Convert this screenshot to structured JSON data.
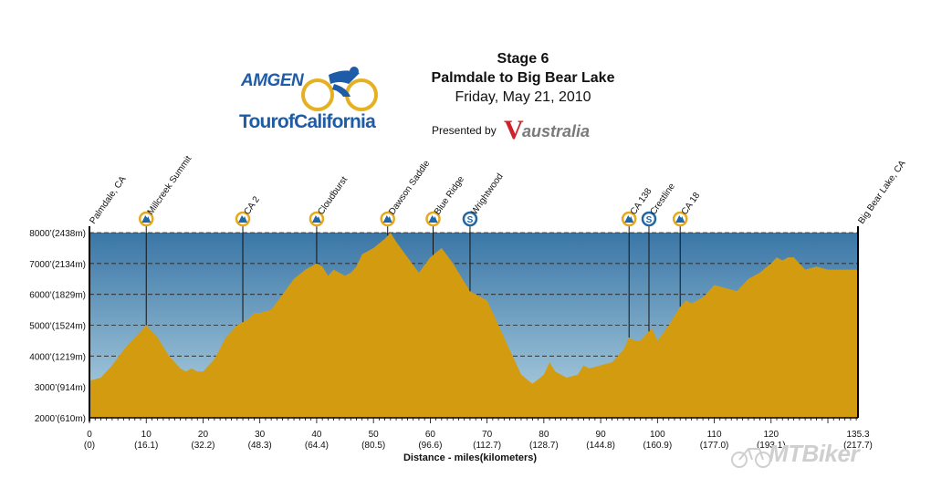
{
  "header": {
    "stage": "Stage 6",
    "route": "Palmdale to Big Bear Lake",
    "date": "Friday, May 21, 2010",
    "presented_by": "Presented by",
    "sponsor": "australia",
    "sponsor_initial": "V"
  },
  "logo": {
    "line1": "AMGEN",
    "line2": "TourofCalifornia"
  },
  "watermark": "MTBiker",
  "colors": {
    "terrain": "#d39c10",
    "sky_top": "#3a76a6",
    "sky_bottom": "#b3d4e3",
    "climb_icon": "#e7a81c",
    "sprint_icon": "#2166a5"
  },
  "chart_data": {
    "type": "area",
    "xlabel": "Distance - miles(kilometers)",
    "ylim": [
      2000,
      8000
    ],
    "xlim": [
      0,
      135.3
    ],
    "grid": true,
    "x_ticks": [
      0,
      10,
      20,
      30,
      40,
      50,
      60,
      70,
      80,
      90,
      100,
      110,
      120,
      135.3
    ],
    "x_tick_labels": [
      "0",
      "10",
      "20",
      "30",
      "40",
      "50",
      "60",
      "70",
      "80",
      "90",
      "100",
      "110",
      "120",
      "135.3"
    ],
    "x_tick_sublabels": [
      "(0)",
      "(16.1)",
      "(32.2)",
      "(48.3)",
      "(64.4)",
      "(80.5)",
      "(96.6)",
      "(112.7)",
      "(128.7)",
      "(144.8)",
      "(160.9)",
      "(177.0)",
      "(193.1)",
      "(217.7)"
    ],
    "y_ticks": [
      2000,
      3000,
      4000,
      5000,
      6000,
      7000,
      8000
    ],
    "y_tick_labels": [
      "2000’(610m)",
      "3000’(914m)",
      "4000’(1219m)",
      "5000’(1524m)",
      "6000’(1829m)",
      "7000’(2134m)",
      "8000’(2438m)"
    ],
    "profile": {
      "x": [
        0,
        2,
        4,
        6,
        8,
        10,
        12,
        14,
        16,
        17,
        18,
        19,
        20,
        22,
        24,
        26,
        28,
        29,
        30,
        32,
        34,
        36,
        38,
        40,
        41,
        42,
        43,
        44,
        45,
        46,
        47,
        48,
        50,
        52,
        53,
        54,
        56,
        58,
        60,
        62,
        64,
        66,
        67,
        68,
        70,
        72,
        74,
        76,
        78,
        80,
        81,
        82,
        84,
        86,
        87,
        88,
        90,
        92,
        94,
        95,
        96,
        97,
        98,
        99,
        100,
        102,
        104,
        105,
        106,
        108,
        110,
        112,
        114,
        116,
        118,
        120,
        121,
        122,
        123,
        124,
        126,
        128,
        130,
        132,
        134,
        135.3
      ],
      "elev": [
        3200,
        3300,
        3700,
        4200,
        4600,
        5000,
        4600,
        4000,
        3600,
        3500,
        3600,
        3500,
        3500,
        3900,
        4600,
        5000,
        5200,
        5400,
        5400,
        5500,
        6000,
        6500,
        6800,
        7000,
        6900,
        6600,
        6800,
        6700,
        6600,
        6700,
        6900,
        7300,
        7500,
        7800,
        8000,
        7700,
        7200,
        6700,
        7200,
        7500,
        7000,
        6400,
        6100,
        6000,
        5800,
        5000,
        4200,
        3400,
        3100,
        3400,
        3800,
        3500,
        3300,
        3400,
        3700,
        3600,
        3700,
        3800,
        4200,
        4600,
        4500,
        4500,
        4700,
        4900,
        4500,
        5000,
        5600,
        5800,
        5700,
        5900,
        6300,
        6200,
        6100,
        6500,
        6700,
        7000,
        7200,
        7100,
        7200,
        7200,
        6800,
        6900,
        6800,
        6800,
        6800,
        6800
      ]
    },
    "markers": [
      {
        "name": "Palmdale, CA",
        "x": 0,
        "type": "none"
      },
      {
        "name": "Millcreek Summit",
        "x": 10,
        "type": "climb"
      },
      {
        "name": "CA 2",
        "x": 27,
        "type": "climb"
      },
      {
        "name": "Cloudburst",
        "x": 40,
        "type": "climb"
      },
      {
        "name": "Dawson Saddle",
        "x": 52.5,
        "type": "climb"
      },
      {
        "name": "Blue Ridge",
        "x": 60.5,
        "type": "climb"
      },
      {
        "name": "Wrightwood",
        "x": 67,
        "type": "sprint"
      },
      {
        "name": "CA 138",
        "x": 95,
        "type": "climb"
      },
      {
        "name": "Crestline",
        "x": 98.5,
        "type": "sprint"
      },
      {
        "name": "CA 18",
        "x": 104,
        "type": "climb"
      },
      {
        "name": "Big Bear Lake, CA",
        "x": 135.3,
        "type": "none"
      }
    ]
  }
}
